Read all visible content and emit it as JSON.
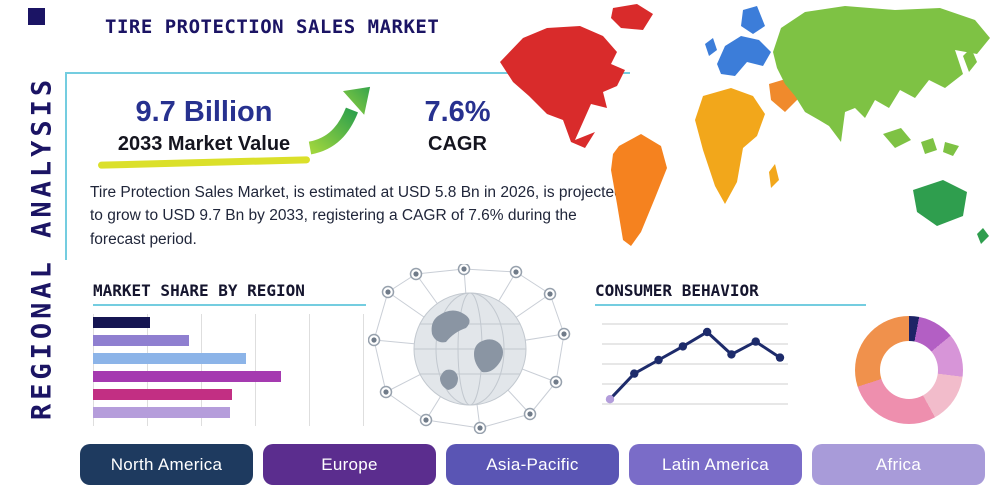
{
  "header": {
    "title": "TIRE PROTECTION SALES MARKET",
    "side_label": "REGIONAL ANALYSIS"
  },
  "stats": {
    "value_2033": "9.7 Billion",
    "value_2033_label": "2033 Market Value",
    "cagr_value": "7.6%",
    "cagr_label": "CAGR",
    "description": "Tire Protection Sales Market, is estimated at USD 5.8 Bn in 2026, is projected to grow to USD 9.7 Bn by 2033, registering a CAGR of 7.6% during the forecast period."
  },
  "sections": {
    "market_share": {
      "title": "MARKET SHARE BY REGION"
    },
    "consumer_behavior": {
      "title": "CONSUMER BEHAVIOR"
    }
  },
  "region_buttons": [
    {
      "label": "North America",
      "color": "#1e3a5f"
    },
    {
      "label": "Europe",
      "color": "#5b2d8e"
    },
    {
      "label": "Asia-Pacific",
      "color": "#5a55b4"
    },
    {
      "label": "Latin America",
      "color": "#7a6cc8"
    },
    {
      "label": "Africa",
      "color": "#a89bd9"
    }
  ],
  "map_regions": [
    {
      "name": "North America",
      "color": "#d92b2b"
    },
    {
      "name": "South America",
      "color": "#f5821f"
    },
    {
      "name": "Europe",
      "color": "#3c7dd9"
    },
    {
      "name": "Africa",
      "color": "#f2a71b"
    },
    {
      "name": "Asia",
      "color": "#7ec244"
    },
    {
      "name": "Australia",
      "color": "#2f9e4e"
    },
    {
      "name": "Middle East",
      "color": "#f08a2c"
    }
  ],
  "colors": {
    "navy": "#1b1464",
    "accent_teal": "#74cde0",
    "highlight_yellow": "#dbe02a",
    "arrow_green_light": "#9ed53e",
    "arrow_green_dark": "#2fa14c",
    "line_navy": "#1d2b6b"
  },
  "chart_data": [
    {
      "type": "bar",
      "orientation": "horizontal",
      "title": "MARKET SHARE BY REGION",
      "categories": [
        "bar-1",
        "bar-2",
        "bar-3",
        "bar-4",
        "bar-5",
        "bar-6"
      ],
      "values": [
        21,
        35,
        56,
        69,
        51,
        50
      ],
      "xlim": [
        0,
        100
      ],
      "grid": "vertical",
      "value_labels": false,
      "colors": [
        "#151552",
        "#8f7fd0",
        "#8cb4e8",
        "#a53ab0",
        "#c22f83",
        "#b59ddb"
      ]
    },
    {
      "type": "line",
      "title": "CONSUMER BEHAVIOR",
      "x": [
        1,
        2,
        3,
        4,
        5,
        6,
        7,
        8
      ],
      "values": [
        6,
        38,
        55,
        72,
        90,
        62,
        78,
        58
      ],
      "ylim": [
        0,
        100
      ],
      "grid": "horizontal",
      "markers": true,
      "color": "#1d2b6b",
      "first_marker_color": "#b39ddb"
    },
    {
      "type": "pie",
      "donut": true,
      "title": "",
      "slices": [
        {
          "label": "slice-1",
          "value": 3,
          "color": "#1d2366"
        },
        {
          "label": "slice-2",
          "value": 11,
          "color": "#b35fc4"
        },
        {
          "label": "slice-3",
          "value": 13,
          "color": "#d795d8"
        },
        {
          "label": "slice-4",
          "value": 15,
          "color": "#f2bccb"
        },
        {
          "label": "slice-5",
          "value": 28,
          "color": "#ee8fae"
        },
        {
          "label": "slice-6",
          "value": 30,
          "color": "#f0914c"
        }
      ]
    }
  ]
}
